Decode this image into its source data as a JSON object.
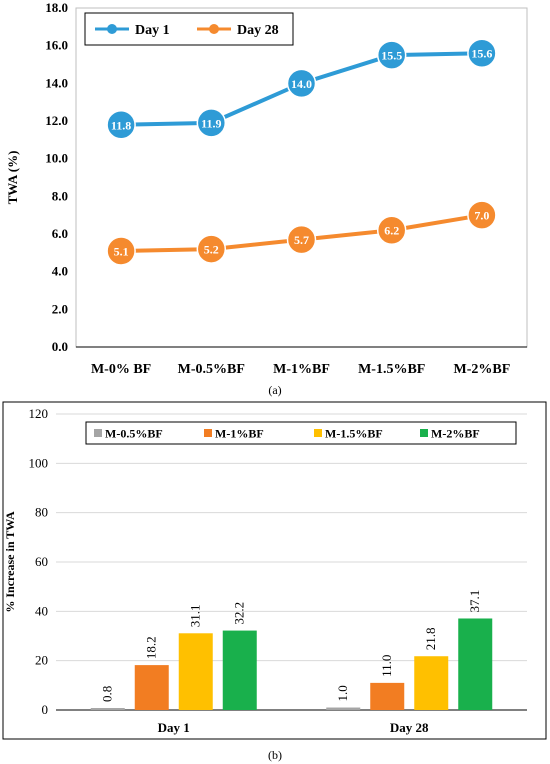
{
  "panel_captions": [
    "(a)",
    "(b)"
  ],
  "colors": {
    "day1": "#2e9bd6",
    "day28": "#f58a2e",
    "m05": "#a5a5a5",
    "m1": "#f27d22",
    "m15": "#ffc000",
    "m2": "#19b04c",
    "grid": "#d9d9d9"
  },
  "chart_data": [
    {
      "type": "line",
      "title": "",
      "xlabel": "",
      "ylabel": "TWA (%)",
      "categories": [
        "M-0% BF",
        "M-0.5%BF",
        "M-1%BF",
        "M-1.5%BF",
        "M-2%BF"
      ],
      "ylim": [
        0,
        18
      ],
      "yticks": [
        "0.0",
        "2.0",
        "4.0",
        "6.0",
        "8.0",
        "10.0",
        "12.0",
        "14.0",
        "16.0",
        "18.0"
      ],
      "grid": false,
      "legend_position": "top-left",
      "series": [
        {
          "name": "Day 1",
          "values": [
            11.8,
            11.9,
            14.0,
            15.5,
            15.6
          ],
          "labels": [
            "11.8",
            "11.9",
            "14.0",
            "15.5",
            "15.6"
          ]
        },
        {
          "name": "Day 28",
          "values": [
            5.1,
            5.2,
            5.7,
            6.2,
            7.0
          ],
          "labels": [
            "5.1",
            "5.2",
            "5.7",
            "6.2",
            "7.0"
          ]
        }
      ]
    },
    {
      "type": "bar",
      "title": "",
      "xlabel": "",
      "ylabel": "% Increase in TWA",
      "categories": [
        "Day 1",
        "Day 28"
      ],
      "ylim": [
        0,
        120
      ],
      "yticks": [
        "0",
        "20",
        "40",
        "60",
        "80",
        "100",
        "120"
      ],
      "grid": true,
      "legend_position": "top",
      "series": [
        {
          "name": "M-0.5%BF",
          "values": [
            0.8,
            1.0
          ],
          "labels": [
            "0.8",
            "1.0"
          ]
        },
        {
          "name": "M-1%BF",
          "values": [
            18.2,
            11.0
          ],
          "labels": [
            "18.2",
            "11.0"
          ]
        },
        {
          "name": "M-1.5%BF",
          "values": [
            31.1,
            21.8
          ],
          "labels": [
            "31.1",
            "21.8"
          ]
        },
        {
          "name": "M-2%BF",
          "values": [
            32.2,
            37.1
          ],
          "labels": [
            "32.2",
            "37.1"
          ]
        }
      ]
    }
  ]
}
